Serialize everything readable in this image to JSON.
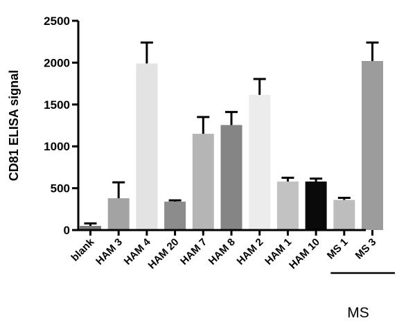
{
  "chart_data": {
    "type": "bar",
    "title": "",
    "xlabel": "",
    "ylabel": "CD81 ELISA signal",
    "ylim": [
      0,
      2500
    ],
    "yticks": [
      0,
      500,
      1000,
      1500,
      2000,
      2500
    ],
    "grid": false,
    "legend": "none",
    "categories": [
      "blank",
      "HAM 3",
      "HAM 4",
      "HAM 20",
      "HAM 7",
      "HAM 8",
      "HAM 2",
      "HAM 1",
      "HAM 10",
      "MS 1",
      "MS 3"
    ],
    "values": [
      50,
      380,
      1990,
      340,
      1150,
      1255,
      1615,
      580,
      580,
      360,
      2020
    ],
    "errors": [
      30,
      190,
      250,
      15,
      200,
      155,
      190,
      45,
      35,
      25,
      220
    ],
    "colors": [
      "#7a7a7a",
      "#a3a3a3",
      "#e3e3e3",
      "#8c8c8c",
      "#b5b5b5",
      "#858585",
      "#ececec",
      "#c2c2c2",
      "#0a0a0a",
      "#bdbdbd",
      "#9c9c9c"
    ],
    "group_bracket": {
      "label": "MS",
      "from_category": "MS 1",
      "to_category": "MS 3"
    }
  }
}
